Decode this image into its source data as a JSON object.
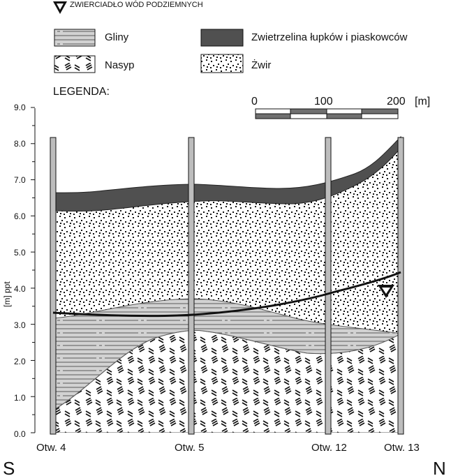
{
  "legend": {
    "water_table": "ZWIERCIADŁO WÓD PODZIEMNYCH",
    "clay": "Gliny",
    "fill": "Nasyp",
    "weathered": "Zwietrzelina  łupków i piaskowców",
    "gravel": "Żwir",
    "title": "LEGENDA:"
  },
  "scale_bar": {
    "ticks": [
      "0",
      "100",
      "200"
    ],
    "unit": "[m]"
  },
  "axis": {
    "label": "[m] ppt",
    "ticks": [
      "9.0",
      "8.0",
      "7.0",
      "6.0",
      "5.0",
      "4.0",
      "3.0",
      "2.0",
      "1.0",
      "0.0"
    ],
    "ylim": [
      0,
      9
    ]
  },
  "boreholes": [
    {
      "name": "Otw. 4"
    },
    {
      "name": "Otw. 5"
    },
    {
      "name": "Otw. 12"
    },
    {
      "name": "Otw. 13"
    }
  ],
  "directions": {
    "left": "S",
    "right": "N"
  },
  "colors": {
    "weathered": "#505050",
    "clay": "#d2d2d2",
    "line": "#111111",
    "borehole": "#bdbdbd"
  }
}
